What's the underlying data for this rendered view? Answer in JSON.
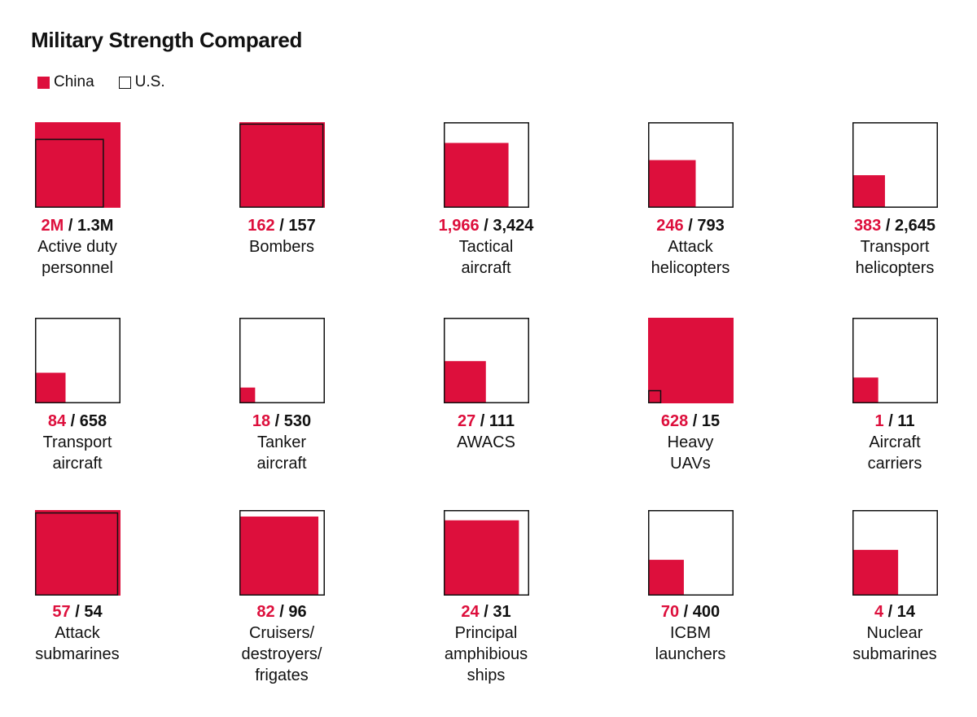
{
  "title": "Military Strength Compared",
  "legend": [
    {
      "key": "china",
      "label": "China",
      "color": "#dd0f3c"
    },
    {
      "key": "us",
      "label": "U.S.",
      "color": "#111111"
    }
  ],
  "chart_data": {
    "type": "proportional-square-comparison",
    "series": [
      {
        "name": "China",
        "color": "#dd0f3c"
      },
      {
        "name": "U.S.",
        "color": "#111111"
      }
    ],
    "items": [
      {
        "label": "Active duty\npersonnel",
        "china": 2000000,
        "us": 1300000,
        "china_label": "2M",
        "us_label": "1.3M"
      },
      {
        "label": "Bombers",
        "china": 162,
        "us": 157,
        "china_label": "162",
        "us_label": "157"
      },
      {
        "label": "Tactical\naircraft",
        "china": 1966,
        "us": 3424,
        "china_label": "1,966",
        "us_label": "3,424"
      },
      {
        "label": "Attack\nhelicopters",
        "china": 246,
        "us": 793,
        "china_label": "246",
        "us_label": "793"
      },
      {
        "label": "Transport\nhelicopters",
        "china": 383,
        "us": 2645,
        "china_label": "383",
        "us_label": "2,645"
      },
      {
        "label": "Transport\naircraft",
        "china": 84,
        "us": 658,
        "china_label": "84",
        "us_label": "658"
      },
      {
        "label": "Tanker\naircraft",
        "china": 18,
        "us": 530,
        "china_label": "18",
        "us_label": "530"
      },
      {
        "label": "AWACS",
        "china": 27,
        "us": 111,
        "china_label": "27",
        "us_label": "111"
      },
      {
        "label": "Heavy\nUAVs",
        "china": 628,
        "us": 15,
        "china_label": "628",
        "us_label": "15"
      },
      {
        "label": "Aircraft\ncarriers",
        "china": 1,
        "us": 11,
        "china_label": "1",
        "us_label": "11"
      },
      {
        "label": "Attack\nsubmarines",
        "china": 57,
        "us": 54,
        "china_label": "57",
        "us_label": "54"
      },
      {
        "label": "Cruisers/\ndestroyers/\nfrigates",
        "china": 82,
        "us": 96,
        "china_label": "82",
        "us_label": "96"
      },
      {
        "label": "Principal\namphibious\nships",
        "china": 24,
        "us": 31,
        "china_label": "24",
        "us_label": "31"
      },
      {
        "label": "ICBM\nlaunchers",
        "china": 70,
        "us": 400,
        "china_label": "70",
        "us_label": "400"
      },
      {
        "label": "Nuclear\nsubmarines",
        "china": 4,
        "us": 14,
        "china_label": "4",
        "us_label": "14"
      }
    ]
  }
}
